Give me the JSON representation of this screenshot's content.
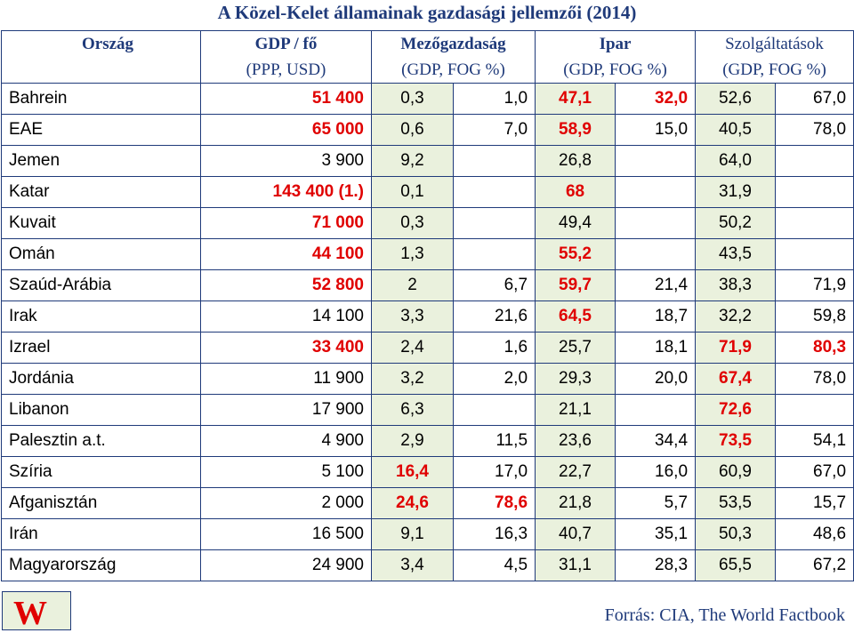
{
  "title": "A Közel-Kelet államainak gazdasági jellemzői (2014)",
  "headers": {
    "country": "Ország",
    "gdp": "GDP / fő",
    "gdp_unit": "(PPP, USD)",
    "agri": "Mezőgazdaság",
    "agri_unit": "(GDP, FOG %)",
    "industry": "Ipar",
    "industry_unit": "(GDP, FOG %)",
    "services": "Szolgáltatások",
    "services_unit": "(GDP, FOG %)"
  },
  "rows": [
    {
      "country": "Bahrein",
      "gdp": "51 400",
      "gdp_red": true,
      "cells": [
        [
          "0,3",
          false
        ],
        [
          "1,0",
          false
        ],
        [
          "47,1",
          true
        ],
        [
          "32,0",
          true
        ],
        [
          "52,6",
          false
        ],
        [
          "67,0",
          false
        ]
      ]
    },
    {
      "country": "EAE",
      "gdp": "65 000",
      "gdp_red": true,
      "cells": [
        [
          "0,6",
          false
        ],
        [
          "7,0",
          false
        ],
        [
          "58,9",
          true
        ],
        [
          "15,0",
          false
        ],
        [
          "40,5",
          false
        ],
        [
          "78,0",
          false
        ]
      ]
    },
    {
      "country": "Jemen",
      "gdp": "3 900",
      "gdp_red": false,
      "cells": [
        [
          "9,2",
          false
        ],
        [
          "",
          false
        ],
        [
          "26,8",
          false
        ],
        [
          "",
          false
        ],
        [
          "64,0",
          false
        ],
        [
          "",
          false
        ]
      ]
    },
    {
      "country": "Katar",
      "gdp": "143 400 (1.)",
      "gdp_red": true,
      "cells": [
        [
          "0,1",
          false
        ],
        [
          "",
          false
        ],
        [
          "68",
          true
        ],
        [
          "",
          false
        ],
        [
          "31,9",
          false
        ],
        [
          "",
          false
        ]
      ]
    },
    {
      "country": "Kuvait",
      "gdp": "71 000",
      "gdp_red": true,
      "cells": [
        [
          "0,3",
          false
        ],
        [
          "",
          false
        ],
        [
          "49,4",
          false
        ],
        [
          "",
          false
        ],
        [
          "50,2",
          false
        ],
        [
          "",
          false
        ]
      ]
    },
    {
      "country": "Omán",
      "gdp": "44 100",
      "gdp_red": true,
      "cells": [
        [
          "1,3",
          false
        ],
        [
          "",
          false
        ],
        [
          "55,2",
          true
        ],
        [
          "",
          false
        ],
        [
          "43,5",
          false
        ],
        [
          "",
          false
        ]
      ]
    },
    {
      "country": "Szaúd-Arábia",
      "gdp": "52 800",
      "gdp_red": true,
      "cells": [
        [
          "2",
          false
        ],
        [
          "6,7",
          false
        ],
        [
          "59,7",
          true
        ],
        [
          "21,4",
          false
        ],
        [
          "38,3",
          false
        ],
        [
          "71,9",
          false
        ]
      ]
    },
    {
      "country": "Irak",
      "gdp": "14 100",
      "gdp_red": false,
      "cells": [
        [
          "3,3",
          false
        ],
        [
          "21,6",
          false
        ],
        [
          "64,5",
          true
        ],
        [
          "18,7",
          false
        ],
        [
          "32,2",
          false
        ],
        [
          "59,8",
          false
        ]
      ]
    },
    {
      "country": "Izrael",
      "gdp": "33 400",
      "gdp_red": true,
      "cells": [
        [
          "2,4",
          false
        ],
        [
          "1,6",
          false
        ],
        [
          "25,7",
          false
        ],
        [
          "18,1",
          false
        ],
        [
          "71,9",
          true
        ],
        [
          "80,3",
          true
        ]
      ]
    },
    {
      "country": "Jordánia",
      "gdp": "11 900",
      "gdp_red": false,
      "cells": [
        [
          "3,2",
          false
        ],
        [
          "2,0",
          false
        ],
        [
          "29,3",
          false
        ],
        [
          "20,0",
          false
        ],
        [
          "67,4",
          true
        ],
        [
          "78,0",
          false
        ]
      ]
    },
    {
      "country": "Libanon",
      "gdp": "17 900",
      "gdp_red": false,
      "cells": [
        [
          "6,3",
          false
        ],
        [
          "",
          false
        ],
        [
          "21,1",
          false
        ],
        [
          "",
          false
        ],
        [
          "72,6",
          true
        ],
        [
          "",
          false
        ]
      ]
    },
    {
      "country": "Palesztin a.t.",
      "gdp": "4 900",
      "gdp_red": false,
      "cells": [
        [
          "2,9",
          false
        ],
        [
          "11,5",
          false
        ],
        [
          "23,6",
          false
        ],
        [
          "34,4",
          false
        ],
        [
          "73,5",
          true
        ],
        [
          "54,1",
          false
        ]
      ]
    },
    {
      "country": "Szíria",
      "gdp": "5 100",
      "gdp_red": false,
      "cells": [
        [
          "16,4",
          true
        ],
        [
          "17,0",
          false
        ],
        [
          "22,7",
          false
        ],
        [
          "16,0",
          false
        ],
        [
          "60,9",
          false
        ],
        [
          "67,0",
          false
        ]
      ]
    },
    {
      "country": "Afganisztán",
      "gdp": "2 000",
      "gdp_red": false,
      "cells": [
        [
          "24,6",
          true
        ],
        [
          "78,6",
          true
        ],
        [
          "21,8",
          false
        ],
        [
          "5,7",
          false
        ],
        [
          "53,5",
          false
        ],
        [
          "15,7",
          false
        ]
      ]
    },
    {
      "country": "Irán",
      "gdp": "16 500",
      "gdp_red": false,
      "cells": [
        [
          "9,1",
          false
        ],
        [
          "16,3",
          false
        ],
        [
          "40,7",
          false
        ],
        [
          "35,1",
          false
        ],
        [
          "50,3",
          false
        ],
        [
          "48,6",
          false
        ]
      ]
    },
    {
      "country": "Magyarország",
      "gdp": "24 900",
      "gdp_red": false,
      "cells": [
        [
          "3,4",
          false
        ],
        [
          "4,5",
          false
        ],
        [
          "31,1",
          false
        ],
        [
          "28,3",
          false
        ],
        [
          "65,5",
          false
        ],
        [
          "67,2",
          false
        ]
      ]
    }
  ],
  "logo": "W",
  "source": "Forrás: CIA, The World Factbook",
  "colors": {
    "accent": "#1f3a7a",
    "highlight": "#e00000",
    "green_cell": "#eaf1dd"
  }
}
